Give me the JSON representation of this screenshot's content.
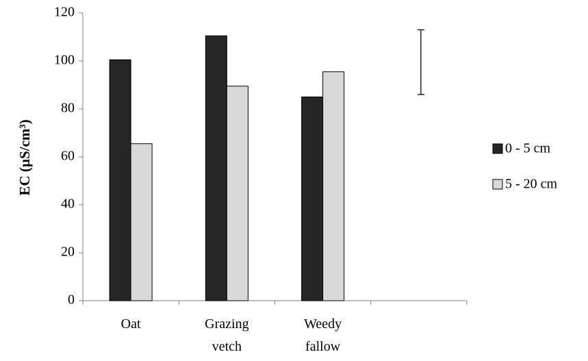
{
  "chart_data": {
    "type": "bar",
    "categories": [
      [
        "Oat"
      ],
      [
        "Grazing",
        "vetch"
      ],
      [
        "Weedy",
        "fallow"
      ],
      [
        ""
      ]
    ],
    "series": [
      {
        "name": "0 - 5 cm",
        "values": [
          100.5,
          110.5,
          85,
          null
        ],
        "color": "#262626"
      },
      {
        "name": "5 - 20 cm",
        "values": [
          65.5,
          89.5,
          95.5,
          null
        ],
        "color": "#d9d9d9"
      }
    ],
    "ylabel": "EC (µS/cm³)",
    "ylim": [
      0,
      120
    ],
    "yticks": [
      0,
      20,
      40,
      60,
      80,
      100,
      120
    ],
    "grid": false,
    "legend": "right",
    "error_bar": {
      "category_index": 3,
      "low": 86,
      "high": 113
    }
  }
}
